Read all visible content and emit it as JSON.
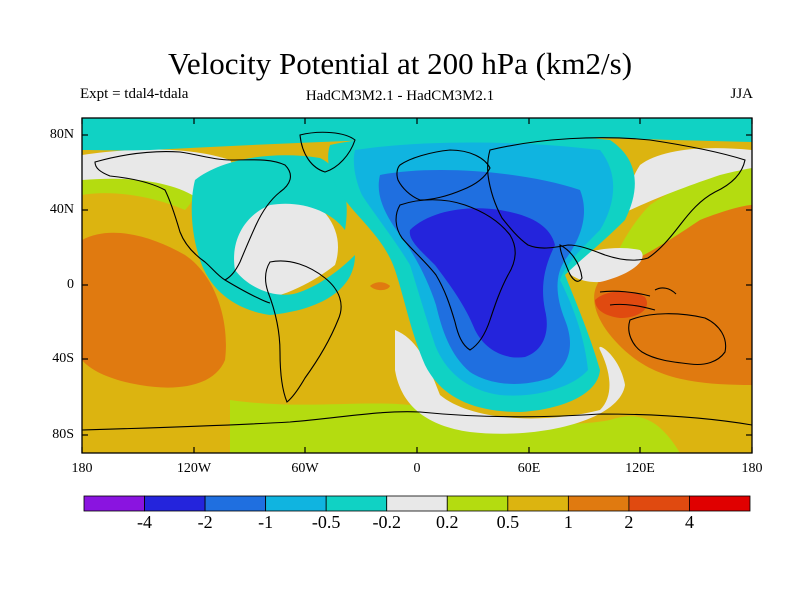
{
  "title": "Velocity Potential at 200 hPa (km2/s)",
  "subtitle_left": "Expt = tdal4-tdala",
  "subtitle_center": "HadCM3M2.1 - HadCM3M2.1",
  "subtitle_right": "JJA",
  "y_ticks": [
    "80N",
    "40N",
    "0",
    "40S",
    "80S"
  ],
  "x_ticks": [
    "180",
    "120W",
    "60W",
    "0",
    "60E",
    "120E",
    "180"
  ],
  "colorbar": {
    "labels": [
      "-4",
      "-2",
      "-1",
      "-0.5",
      "-0.2",
      "0.2",
      "0.5",
      "1",
      "2",
      "4"
    ],
    "colors": [
      "#8a14e0",
      "#2424dc",
      "#1f6fe0",
      "#10b4e0",
      "#10d2c4",
      "#e8e8e8",
      "#b4dc10",
      "#dcb410",
      "#e07a10",
      "#e04a10",
      "#e00000"
    ]
  },
  "map_palette": {
    "ocean_far_pole": "#10d2c4",
    "neutral": "#e8e8e8",
    "weak_pos": "#b4dc10",
    "mod_pos": "#dcb410",
    "strong_pos": "#e07a10",
    "very_strong_pos": "#e04a10",
    "weak_neg": "#10d2c4",
    "mod_neg": "#10b4e0",
    "strong_neg": "#1f6fe0",
    "very_strong_neg": "#2424dc"
  }
}
